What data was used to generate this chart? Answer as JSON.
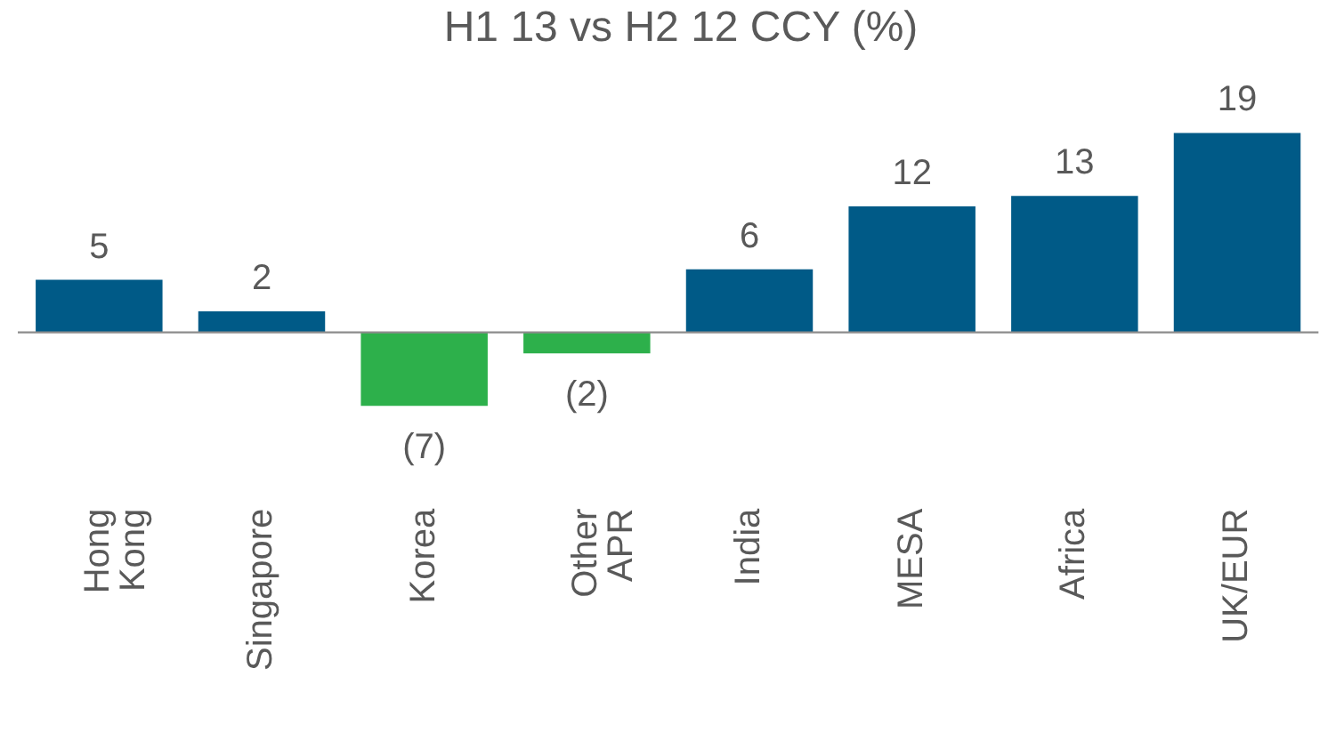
{
  "chart_data": {
    "type": "bar",
    "title": "H1 13 vs H2 12 CCY (%)",
    "categories": [
      "Hong Kong",
      "Singapore",
      "Korea",
      "Other APR",
      "India",
      "MESA",
      "Africa",
      "UK/EUR"
    ],
    "values": [
      5,
      2,
      -7,
      -2,
      6,
      12,
      13,
      19
    ],
    "colors": [
      "#005a87",
      "#005a87",
      "#2db04b",
      "#2db04b",
      "#005a87",
      "#005a87",
      "#005a87",
      "#005a87"
    ],
    "value_labels": [
      "5",
      "2",
      "(7)",
      "(2)",
      "6",
      "12",
      "13",
      "19"
    ],
    "tick_labels": "x",
    "grid": false,
    "legend": false
  }
}
